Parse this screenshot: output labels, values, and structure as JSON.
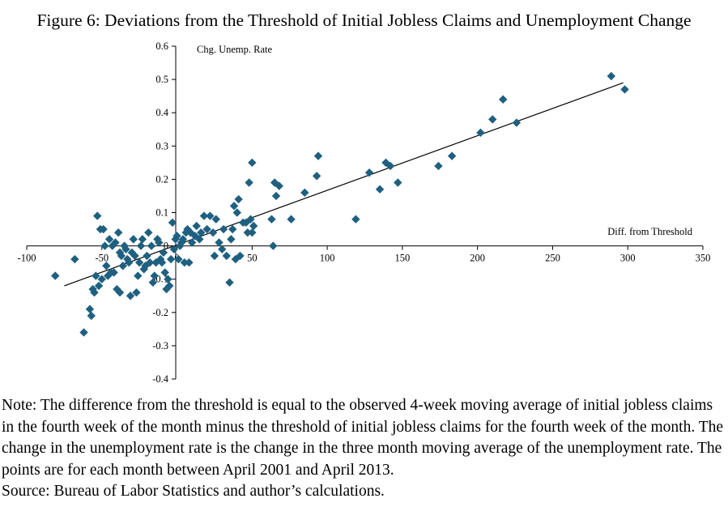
{
  "title": "Figure 6: Deviations from the Threshold of Initial Jobless Claims and Unemployment Change",
  "note": "Note: The difference from the threshold is equal to the observed 4-week moving average of initial jobless claims in the fourth week of the month minus the threshold of initial jobless claims for the fourth week of the month. The change in the unemployment rate is the change in the three month moving average of the unemployment rate. The points are for each month between April 2001 and April 2013.",
  "source": "Source: Bureau of Labor Statistics and author’s calculations.",
  "colors": {
    "marker": "#1f6080",
    "trendline": "#000000",
    "axis": "#000000"
  },
  "chart_data": {
    "type": "scatter",
    "title": "Figure 6: Deviations from the Threshold of Initial Jobless Claims and Unemployment Change",
    "xlabel": "Diff. from Threshold",
    "ylabel": "Chg. Unemp. Rate",
    "xlim": [
      -100,
      350
    ],
    "ylim": [
      -0.4,
      0.6
    ],
    "xticks": [
      -100,
      -50,
      0,
      50,
      100,
      150,
      200,
      250,
      300,
      350
    ],
    "yticks": [
      -0.4,
      -0.3,
      -0.2,
      -0.1,
      0,
      0.1,
      0.2,
      0.3,
      0.4,
      0.5,
      0.6
    ],
    "xtick_labels": [
      "-100",
      "-50",
      "0",
      "50",
      "100",
      "150",
      "200",
      "250",
      "300",
      "350"
    ],
    "ytick_labels": [
      "-0.4",
      "-0.3",
      "-0.2",
      "-0.1",
      "0",
      "0.1",
      "0.2",
      "0.3",
      "0.4",
      "0.5",
      "0.6"
    ],
    "marker": "diamond",
    "grid": false,
    "trendline": {
      "x": [
        -75,
        297
      ],
      "y": [
        -0.12,
        0.49
      ]
    },
    "points": [
      [
        -81,
        -0.09
      ],
      [
        -68,
        -0.04
      ],
      [
        -62,
        -0.26
      ],
      [
        -58,
        -0.19
      ],
      [
        -57,
        -0.21
      ],
      [
        -56,
        -0.13
      ],
      [
        -55,
        -0.14
      ],
      [
        -54,
        -0.09
      ],
      [
        -53,
        0.09
      ],
      [
        -52,
        -0.12
      ],
      [
        -51,
        0.05
      ],
      [
        -50,
        -0.1
      ],
      [
        -49,
        0.05
      ],
      [
        -48,
        0.0
      ],
      [
        -47,
        -0.06
      ],
      [
        -46,
        -0.09
      ],
      [
        -45,
        0.02
      ],
      [
        -44,
        -0.08
      ],
      [
        -43,
        0.0
      ],
      [
        -42,
        -0.08
      ],
      [
        -41,
        0.01
      ],
      [
        -40,
        -0.13
      ],
      [
        -39,
        0.04
      ],
      [
        -38,
        -0.14
      ],
      [
        -38,
        -0.02
      ],
      [
        -37,
        -0.03
      ],
      [
        -36,
        -0.06
      ],
      [
        -35,
        0.0
      ],
      [
        -34,
        -0.01
      ],
      [
        -33,
        -0.04
      ],
      [
        -32,
        -0.05
      ],
      [
        -31,
        -0.15
      ],
      [
        -30,
        -0.02
      ],
      [
        -29,
        0.02
      ],
      [
        -28,
        -0.03
      ],
      [
        -27,
        -0.14
      ],
      [
        -26,
        -0.09
      ],
      [
        -25,
        -0.05
      ],
      [
        -24,
        0.0
      ],
      [
        -23,
        0.02
      ],
      [
        -22,
        -0.07
      ],
      [
        -21,
        -0.06
      ],
      [
        -20,
        -0.03
      ],
      [
        -19,
        0.04
      ],
      [
        -18,
        -0.05
      ],
      [
        -17,
        0.0
      ],
      [
        -16,
        -0.11
      ],
      [
        -15,
        -0.09
      ],
      [
        -14,
        -0.05
      ],
      [
        -13,
        0.02
      ],
      [
        -12,
        0.01
      ],
      [
        -11,
        -0.04
      ],
      [
        -10,
        -0.05
      ],
      [
        -9,
        -0.02
      ],
      [
        -8,
        -0.08
      ],
      [
        -7,
        -0.13
      ],
      [
        -6,
        -0.1
      ],
      [
        -5,
        -0.12
      ],
      [
        -4,
        -0.04
      ],
      [
        -3,
        0.07
      ],
      [
        -2,
        -0.01
      ],
      [
        -1,
        0.02
      ],
      [
        0,
        0.03
      ],
      [
        1,
        -0.04
      ],
      [
        2,
        0.0
      ],
      [
        3,
        0.01
      ],
      [
        4,
        0.02
      ],
      [
        5,
        -0.05
      ],
      [
        6,
        0.04
      ],
      [
        7,
        0.05
      ],
      [
        8,
        -0.05
      ],
      [
        9,
        0.04
      ],
      [
        10,
        0.01
      ],
      [
        12,
        0.03
      ],
      [
        13,
        0.06
      ],
      [
        15,
        0.02
      ],
      [
        16,
        0.04
      ],
      [
        18,
        0.09
      ],
      [
        20,
        0.05
      ],
      [
        22,
        0.09
      ],
      [
        24,
        0.04
      ],
      [
        25,
        -0.03
      ],
      [
        26,
        0.08
      ],
      [
        28,
        0.01
      ],
      [
        30,
        -0.01
      ],
      [
        31,
        0.05
      ],
      [
        33,
        -0.03
      ],
      [
        35,
        -0.11
      ],
      [
        36,
        0.02
      ],
      [
        37,
        0.05
      ],
      [
        38,
        0.12
      ],
      [
        39,
        -0.04
      ],
      [
        40,
        0.1
      ],
      [
        41,
        0.14
      ],
      [
        42,
        -0.03
      ],
      [
        44,
        0.07
      ],
      [
        46,
        0.07
      ],
      [
        47,
        0.04
      ],
      [
        48,
        0.19
      ],
      [
        49,
        0.08
      ],
      [
        50,
        0.25
      ],
      [
        50,
        0.04
      ],
      [
        51,
        0.06
      ],
      [
        63,
        0.08
      ],
      [
        64,
        0.0
      ],
      [
        65,
        0.19
      ],
      [
        66,
        0.15
      ],
      [
        68,
        0.18
      ],
      [
        76,
        0.08
      ],
      [
        85,
        0.16
      ],
      [
        93,
        0.21
      ],
      [
        94,
        0.27
      ],
      [
        119,
        0.08
      ],
      [
        128,
        0.22
      ],
      [
        135,
        0.17
      ],
      [
        139,
        0.25
      ],
      [
        142,
        0.24
      ],
      [
        147,
        0.19
      ],
      [
        174,
        0.24
      ],
      [
        183,
        0.27
      ],
      [
        202,
        0.34
      ],
      [
        210,
        0.38
      ],
      [
        217,
        0.44
      ],
      [
        226,
        0.37
      ],
      [
        289,
        0.51
      ],
      [
        298,
        0.47
      ]
    ]
  }
}
